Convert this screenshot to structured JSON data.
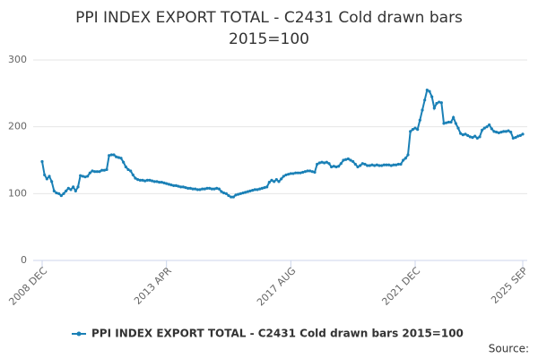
{
  "chart_data": {
    "type": "line",
    "title": "PPI INDEX EXPORT TOTAL - C2431 Cold drawn bars 2015=100",
    "source": "Source:",
    "categories": [
      "2008 DEC",
      null,
      null,
      null,
      null,
      null,
      null,
      null,
      null,
      null,
      null,
      null,
      null,
      null,
      null,
      null,
      null,
      null,
      null,
      null,
      null,
      null,
      null,
      null,
      null,
      null,
      null,
      null,
      null,
      null,
      null,
      null,
      null,
      null,
      null,
      null,
      null,
      null,
      null,
      null,
      null,
      null,
      null,
      null,
      null,
      null,
      null,
      null,
      null,
      null,
      null,
      null,
      "2013 APR",
      null,
      null,
      null,
      null,
      null,
      null,
      null,
      null,
      null,
      null,
      null,
      null,
      null,
      null,
      null,
      null,
      null,
      null,
      null,
      null,
      null,
      null,
      null,
      null,
      null,
      null,
      null,
      null,
      null,
      null,
      null,
      null,
      null,
      null,
      null,
      null,
      null,
      null,
      null,
      null,
      null,
      null,
      null,
      null,
      null,
      null,
      null,
      null,
      null,
      null,
      null,
      "2017 AUG",
      null,
      null,
      null,
      null,
      null,
      null,
      null,
      null,
      null,
      null,
      null,
      null,
      null,
      null,
      null,
      null,
      null,
      null,
      null,
      null,
      null,
      null,
      null,
      null,
      null,
      null,
      null,
      null,
      null,
      null,
      null,
      null,
      null,
      null,
      null,
      null,
      null,
      null,
      null,
      null,
      null,
      null,
      null,
      null,
      null,
      null,
      null,
      null,
      null,
      null,
      null,
      "2021 DEC",
      null,
      null,
      null,
      null,
      null,
      null,
      null,
      null,
      null,
      null,
      null,
      null,
      null,
      null,
      null,
      null,
      null,
      null,
      null,
      null,
      null,
      null,
      null,
      null,
      null,
      null,
      null,
      null,
      null,
      null,
      null,
      null,
      null,
      null,
      null,
      null,
      null,
      null,
      null,
      null,
      null,
      null,
      null,
      null,
      "2025 SEP"
    ],
    "series": [
      {
        "name": "PPI INDEX EXPORT TOTAL - C2431 Cold drawn bars 2015=100",
        "color": "#1a80b6",
        "values": [
          148,
          128,
          122,
          126,
          118,
          104,
          101,
          100,
          97,
          100,
          104,
          108,
          106,
          110,
          104,
          110,
          127,
          126,
          125,
          126,
          131,
          134,
          133,
          133,
          133,
          135,
          135,
          136,
          157,
          158,
          158,
          155,
          154,
          153,
          147,
          140,
          136,
          134,
          128,
          123,
          121,
          120,
          120,
          119,
          120,
          120,
          119,
          118,
          118,
          117,
          117,
          116,
          115,
          114,
          113,
          112,
          112,
          111,
          110,
          110,
          109,
          108,
          108,
          107,
          107,
          106,
          106,
          107,
          107,
          108,
          108,
          107,
          107,
          108,
          107,
          103,
          101,
          100,
          97,
          95,
          95,
          98,
          99,
          100,
          101,
          102,
          103,
          104,
          105,
          106,
          106,
          107,
          108,
          109,
          110,
          117,
          120,
          118,
          121,
          118,
          122,
          126,
          128,
          129,
          130,
          130,
          131,
          131,
          131,
          132,
          133,
          134,
          134,
          133,
          132,
          144,
          146,
          147,
          146,
          147,
          145,
          140,
          141,
          140,
          141,
          145,
          150,
          151,
          152,
          150,
          148,
          144,
          140,
          142,
          145,
          144,
          142,
          142,
          143,
          142,
          143,
          142,
          142,
          143,
          143,
          143,
          142,
          143,
          143,
          144,
          144,
          150,
          153,
          158,
          193,
          196,
          198,
          196,
          210,
          225,
          240,
          255,
          253,
          245,
          228,
          235,
          237,
          236,
          205,
          206,
          207,
          207,
          214,
          205,
          198,
          190,
          188,
          189,
          187,
          185,
          184,
          186,
          183,
          185,
          195,
          198,
          200,
          203,
          197,
          193,
          192,
          191,
          192,
          193,
          193,
          194,
          192,
          183,
          184,
          186,
          187,
          189
        ]
      }
    ],
    "ylim": [
      0,
      300
    ],
    "yticks": [
      0,
      100,
      200,
      300
    ],
    "grid": true
  }
}
